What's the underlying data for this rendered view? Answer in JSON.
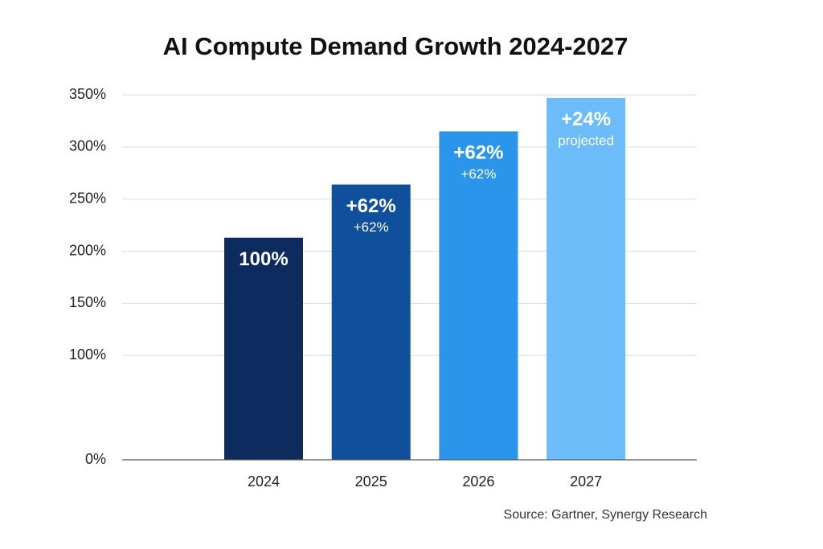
{
  "chart_data": {
    "type": "bar",
    "title": "AI Compute Demand Growth 2024-2027",
    "categories": [
      "2024",
      "2025",
      "2026",
      "2027"
    ],
    "values": [
      213,
      264,
      315,
      347
    ],
    "colors": [
      "#0d2b5e",
      "#0f4f9c",
      "#2b95ec",
      "#6bbcf8"
    ],
    "labels": [
      "100%",
      "+62%",
      "+62%",
      "+24%"
    ],
    "sublabels": [
      null,
      "+62%",
      "+62%",
      "projected"
    ],
    "ylim": [
      0,
      350
    ],
    "yticks": [
      {
        "value": 0,
        "label": "0%"
      },
      {
        "value": 100,
        "label": "100%"
      },
      {
        "value": 150,
        "label": "150%"
      },
      {
        "value": 200,
        "label": "200%"
      },
      {
        "value": 250,
        "label": "250%"
      },
      {
        "value": 300,
        "label": "300%"
      },
      {
        "value": 350,
        "label": "350%"
      }
    ],
    "grid": true,
    "source": "Source: Gartner, Synergy Research"
  }
}
